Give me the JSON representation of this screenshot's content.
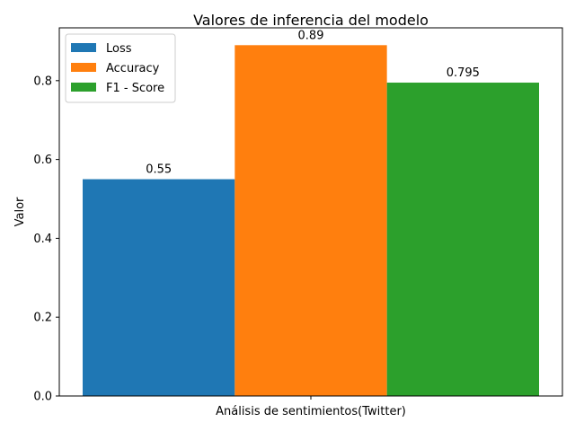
{
  "chart_data": {
    "type": "bar",
    "title": "Valores de inferencia del modelo",
    "xlabel": "",
    "ylabel": "Valor",
    "categories": [
      "Análisis de sentimientos(Twitter)"
    ],
    "series": [
      {
        "name": "Loss",
        "values": [
          0.55
        ],
        "label": "0.55",
        "color": "#1f77b4"
      },
      {
        "name": "Accuracy",
        "values": [
          0.89
        ],
        "label": "0.89",
        "color": "#ff7f0e"
      },
      {
        "name": "F1 - Score",
        "values": [
          0.795
        ],
        "label": "0.795",
        "color": "#2ca02c"
      }
    ],
    "ylim": [
      0,
      0.934
    ],
    "yticks": [
      {
        "value": 0.0,
        "label": "0.0"
      },
      {
        "value": 0.2,
        "label": "0.2"
      },
      {
        "value": 0.4,
        "label": "0.4"
      },
      {
        "value": 0.6,
        "label": "0.6"
      },
      {
        "value": 0.8,
        "label": "0.8"
      }
    ],
    "grid": false,
    "legend_position": "top-left"
  }
}
